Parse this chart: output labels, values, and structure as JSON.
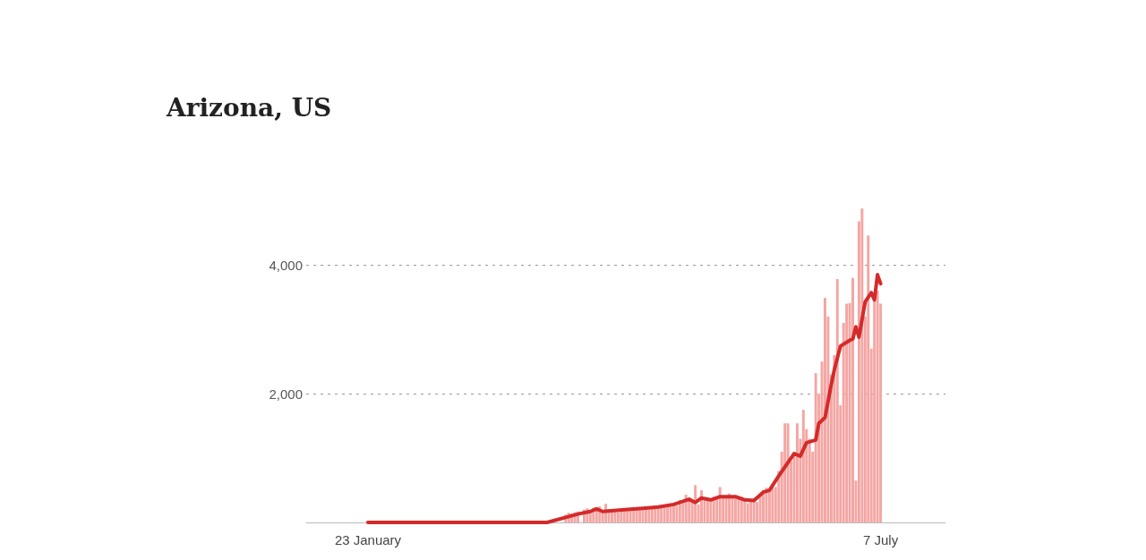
{
  "chart_data": {
    "type": "bar",
    "title": "Arizona, US",
    "x": [
      "--01-23",
      "--01-24",
      "--01-25",
      "--01-26",
      "--01-27",
      "--01-28",
      "--01-29",
      "--01-30",
      "--01-31",
      "--02-01",
      "--02-02",
      "--02-03",
      "--02-04",
      "--02-05",
      "--02-06",
      "--02-07",
      "--02-08",
      "--02-09",
      "--02-10",
      "--02-11",
      "--02-12",
      "--02-13",
      "--02-14",
      "--02-15",
      "--02-16",
      "--02-17",
      "--02-18",
      "--02-19",
      "--02-20",
      "--02-21",
      "--02-22",
      "--02-23",
      "--02-24",
      "--02-25",
      "--02-26",
      "--02-27",
      "--02-28",
      "--02-29",
      "--03-01",
      "--03-02",
      "--03-03",
      "--03-04",
      "--03-05",
      "--03-06",
      "--03-07",
      "--03-08",
      "--03-09",
      "--03-10",
      "--03-11",
      "--03-12",
      "--03-13",
      "--03-14",
      "--03-15",
      "--03-16",
      "--03-17",
      "--03-18",
      "--03-19",
      "--03-20",
      "--03-21",
      "--03-22",
      "--03-23",
      "--03-24",
      "--03-25",
      "--03-26",
      "--03-27",
      "--03-28",
      "--03-29",
      "--03-30",
      "--03-31",
      "--04-01",
      "--04-02",
      "--04-03",
      "--04-04",
      "--04-05",
      "--04-06",
      "--04-07",
      "--04-08",
      "--04-09",
      "--04-10",
      "--04-11",
      "--04-12",
      "--04-13",
      "--04-14",
      "--04-15",
      "--04-16",
      "--04-17",
      "--04-18",
      "--04-19",
      "--04-20",
      "--04-21",
      "--04-22",
      "--04-23",
      "--04-24",
      "--04-25",
      "--04-26",
      "--04-27",
      "--04-28",
      "--04-29",
      "--04-30",
      "--05-01",
      "--05-02",
      "--05-03",
      "--05-04",
      "--05-05",
      "--05-06",
      "--05-07",
      "--05-08",
      "--05-09",
      "--05-10",
      "--05-11",
      "--05-12",
      "--05-13",
      "--05-14",
      "--05-15",
      "--05-16",
      "--05-17",
      "--05-18",
      "--05-19",
      "--05-20",
      "--05-21",
      "--05-22",
      "--05-23",
      "--05-24",
      "--05-25",
      "--05-26",
      "--05-27",
      "--05-28",
      "--05-29",
      "--05-30",
      "--05-31",
      "--06-01",
      "--06-02",
      "--06-03",
      "--06-04",
      "--06-05",
      "--06-06",
      "--06-07",
      "--06-08",
      "--06-09",
      "--06-10",
      "--06-11",
      "--06-12",
      "--06-13",
      "--06-14",
      "--06-15",
      "--06-16",
      "--06-17",
      "--06-18",
      "--06-19",
      "--06-20",
      "--06-21",
      "--06-22",
      "--06-23",
      "--06-24",
      "--06-25",
      "--06-26",
      "--06-27",
      "--06-28",
      "--06-29",
      "--06-30",
      "--07-01",
      "--07-02",
      "--07-03",
      "--07-04",
      "--07-05",
      "--07-06",
      "--07-07"
    ],
    "series": [
      {
        "color": "#f4a6a3",
        "values": [
          0,
          0,
          0,
          0,
          0,
          0,
          0,
          0,
          0,
          0,
          0,
          0,
          0,
          0,
          0,
          0,
          0,
          0,
          0,
          0,
          0,
          0,
          0,
          0,
          0,
          0,
          0,
          0,
          0,
          0,
          0,
          0,
          0,
          0,
          0,
          0,
          0,
          0,
          0,
          0,
          0,
          0,
          0,
          0,
          0,
          0,
          0,
          0,
          0,
          0,
          0,
          0,
          0,
          0,
          null,
          null,
          null,
          null,
          null,
          null,
          null,
          null,
          null,
          null,
          120,
          150,
          140,
          160,
          170,
          null,
          200,
          220,
          180,
          230,
          210,
          250,
          190,
          290,
          200,
          180,
          200,
          160,
          190,
          210,
          180,
          220,
          230,
          200,
          240,
          210,
          250,
          230,
          220,
          240,
          260,
          230,
          250,
          260,
          280,
          300,
          260,
          350,
          320,
          430,
          380,
          320,
          580,
          280,
          500,
          350,
          380,
          330,
          400,
          370,
          550,
          420,
          380,
          450,
          390,
          420,
          410,
          400,
          350,
          300,
          340,
          380,
          320,
          450,
          500,
          540,
          500,
          600,
          550,
          800,
          1100,
          1540,
          1540,
          950,
          1100,
          1540,
          1300,
          1750,
          1450,
          1300,
          1100,
          2320,
          2000,
          2500,
          3490,
          3200,
          2300,
          2600,
          3780,
          1820,
          3100,
          3400,
          3410,
          3800,
          650,
          4680,
          4880,
          3200,
          4460,
          2700,
          3500,
          3600,
          3400
        ]
      },
      {
        "type": "line",
        "color": "#d42a2a",
        "x": [
          "--01-23",
          "--03-21",
          "--03-31",
          "--04-04",
          "--04-06",
          "--04-08",
          "--04-16",
          "--04-21",
          "--04-26",
          "--05-01",
          "--05-06",
          "--05-08",
          "--05-10",
          "--05-13",
          "--05-16",
          "--05-21",
          "--05-24",
          "--05-27",
          "--05-30",
          "--06-01",
          "--06-04",
          "--06-09",
          "--06-11",
          "--06-13",
          "--06-16",
          "--06-17",
          "--06-19",
          "--06-21",
          "--06-22",
          "--06-24",
          "--06-27",
          "--06-28",
          "--06-29",
          "--06-30",
          "--07-02",
          "--07-04",
          "--07-05",
          "--07-06",
          "--07-07"
        ],
        "values": [
          0,
          0,
          130,
          170,
          210,
          170,
          200,
          220,
          240,
          280,
          360,
          310,
          380,
          350,
          400,
          400,
          350,
          340,
          470,
          500,
          720,
          1070,
          1030,
          1240,
          1280,
          1540,
          1630,
          2140,
          2370,
          2740,
          2830,
          2850,
          3040,
          2880,
          3430,
          3570,
          3460,
          3850,
          3710
        ]
      }
    ],
    "xlim": [
      "--01-03",
      "--07-28"
    ],
    "xticks": [
      {
        "value": "--01-23",
        "label": "23 January"
      },
      {
        "value": "--07-07",
        "label": "7 July"
      }
    ],
    "ylim": [
      0,
      4880
    ],
    "yticks": [
      {
        "value": 2000,
        "label": "2,000"
      },
      {
        "value": 4000,
        "label": "4,000"
      }
    ],
    "grid": "y",
    "line_style": "solid",
    "marker": "none"
  }
}
